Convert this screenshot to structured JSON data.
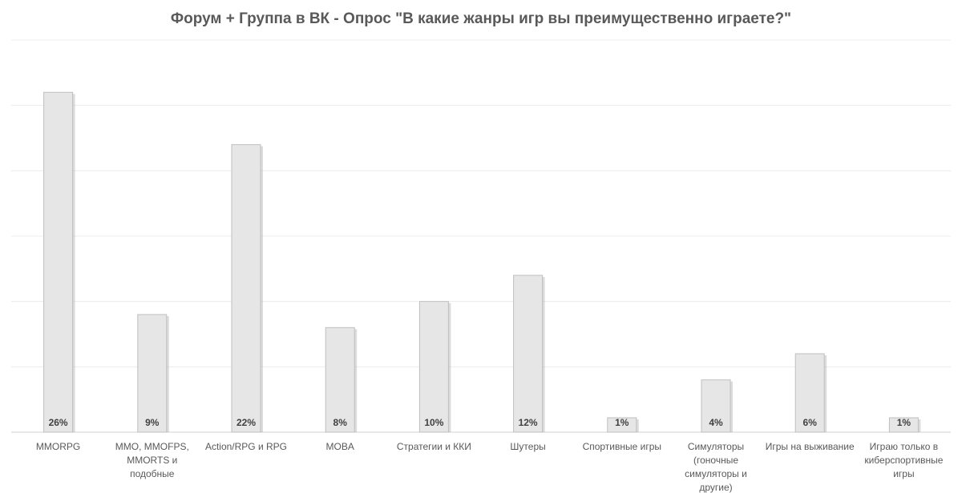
{
  "chart_data": {
    "type": "bar",
    "title": "Форум + Группа в ВК - Опрос \"В какие жанры игр вы преимущественно играете?\"",
    "xlabel": "",
    "ylabel": "",
    "categories": [
      "MMORPG",
      "MMO, MMOFPS, MMORTS и подобные",
      "Action/RPG и RPG",
      "MOBA",
      "Стратегии и ККИ",
      "Шутеры",
      "Спортивные игры",
      "Симуляторы (гоночные симуляторы и другие)",
      "Игры на выживание",
      "Играю только в киберспортивные игры"
    ],
    "values": [
      26,
      9,
      22,
      8,
      10,
      12,
      1,
      4,
      6,
      1
    ],
    "value_labels": [
      "26%",
      "9%",
      "22%",
      "8%",
      "10%",
      "12%",
      "1%",
      "4%",
      "6%",
      "1%"
    ],
    "ylim": [
      0,
      30
    ],
    "grid": true,
    "legend": "none",
    "colors": {
      "bar_fill": "#e6e6e6",
      "bar_border": "#bfbfbf",
      "title": "#595959",
      "text": "#595959"
    }
  }
}
